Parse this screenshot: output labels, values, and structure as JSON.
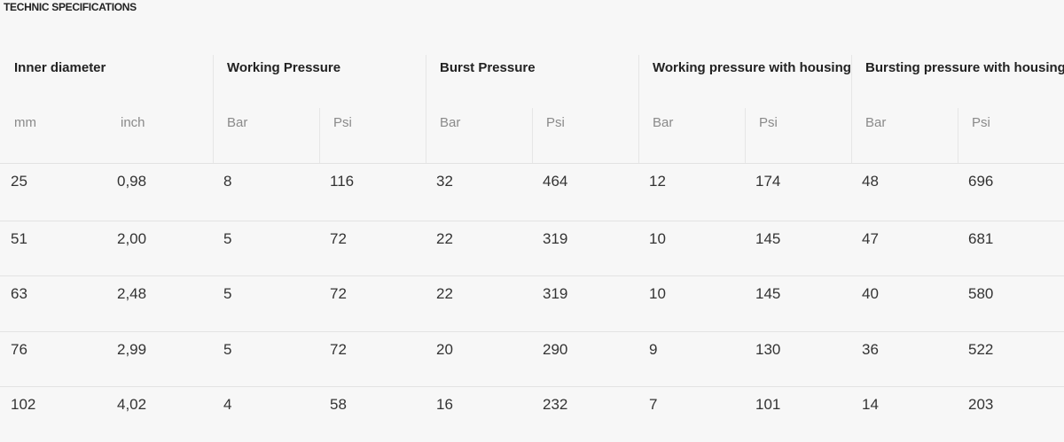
{
  "title": "TECHNIC SPECIFICATIONS",
  "table": {
    "groups": [
      "Inner diameter",
      "Working Pressure",
      "Burst Pressure",
      "Working pressure with housing",
      "Bursting pressure with housing"
    ],
    "units": [
      "mm",
      "inch",
      "Bar",
      "Psi",
      "Bar",
      "Psi",
      "Bar",
      "Psi",
      "Bar",
      "Psi"
    ],
    "rows": [
      [
        "25",
        "0,98",
        "8",
        "116",
        "32",
        "464",
        "12",
        "174",
        "48",
        "696"
      ],
      [
        "51",
        "2,00",
        "5",
        "72",
        "22",
        "319",
        "10",
        "145",
        "47",
        "681"
      ],
      [
        "63",
        "2,48",
        "5",
        "72",
        "22",
        "319",
        "10",
        "145",
        "40",
        "580"
      ],
      [
        "76",
        "2,99",
        "5",
        "72",
        "20",
        "290",
        "9",
        "130",
        "36",
        "522"
      ],
      [
        "102",
        "4,02",
        "4",
        "58",
        "16",
        "232",
        "7",
        "101",
        "14",
        "203"
      ]
    ]
  }
}
